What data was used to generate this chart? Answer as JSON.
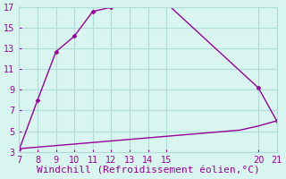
{
  "line1_x": [
    7,
    8,
    9,
    10,
    11,
    12,
    13,
    14,
    15,
    20,
    21
  ],
  "line1_y": [
    3.2,
    8.0,
    12.7,
    14.2,
    16.6,
    17.0,
    17.3,
    17.5,
    17.4,
    9.2,
    6.0
  ],
  "line2_x": [
    7,
    8,
    9,
    10,
    11,
    12,
    13,
    14,
    15,
    16,
    17,
    18,
    19,
    20,
    21
  ],
  "line2_y": [
    3.3,
    3.45,
    3.6,
    3.75,
    3.9,
    4.05,
    4.2,
    4.35,
    4.5,
    4.65,
    4.8,
    4.95,
    5.1,
    5.5,
    6.0
  ],
  "line_color": "#990099",
  "bg_color": "#d8f5f0",
  "grid_color": "#b0ddd8",
  "xlabel": "Windchill (Refroidissement éolien,°C)",
  "xlim": [
    7,
    21
  ],
  "ylim": [
    3,
    17
  ],
  "xticks": [
    7,
    8,
    9,
    10,
    11,
    12,
    13,
    14,
    15,
    20,
    21
  ],
  "yticks": [
    3,
    5,
    7,
    9,
    11,
    13,
    15,
    17
  ],
  "marker": "D",
  "markersize": 2.5,
  "linewidth": 1.0,
  "xlabel_fontsize": 8,
  "tick_fontsize": 7,
  "tick_color": "#990099",
  "xlabel_color": "#990099",
  "fig_width": 3.2,
  "fig_height": 2.0,
  "dpi": 100
}
